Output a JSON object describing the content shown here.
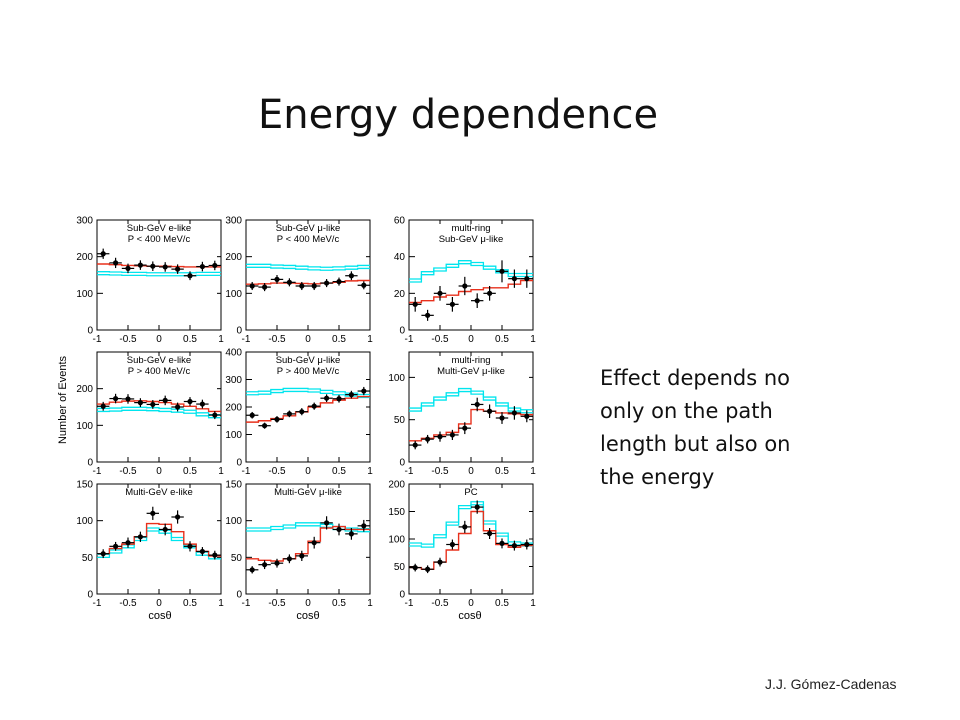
{
  "slide": {
    "title": "Energy dependence",
    "note_lines": [
      "Effect depends no",
      "only on the path",
      "length but also on",
      "the energy"
    ],
    "credit": "J.J. Gómez-Cadenas"
  },
  "figure": {
    "ylabel": "Number of Events",
    "xlabel": "cosθ",
    "colors": {
      "data": "#000000",
      "nonosc": "#00e5ee",
      "osc": "#e8301c"
    }
  },
  "chart_data": [
    {
      "type": "line",
      "panel": "Sub-GeV e-like P<400",
      "label": [
        "Sub-GeV e-like",
        "P < 400 MeV/c"
      ],
      "ylim": [
        0,
        300
      ],
      "yticks": [
        0,
        100,
        200,
        300
      ],
      "xticks": [
        "-1",
        "-0.5",
        "0",
        "0.5",
        "1"
      ],
      "x": [
        -0.9,
        -0.7,
        -0.5,
        -0.3,
        -0.1,
        0.1,
        0.3,
        0.5,
        0.7,
        0.9
      ],
      "series": [
        {
          "role": "data",
          "values": [
            208,
            183,
            168,
            177,
            174,
            172,
            166,
            148,
            173,
            176
          ],
          "errors": [
            14,
            14,
            13,
            13,
            13,
            13,
            13,
            12,
            13,
            13
          ]
        },
        {
          "role": "nonosc",
          "values": [
            155,
            154,
            153,
            153,
            152,
            152,
            152,
            152,
            153,
            153
          ]
        },
        {
          "role": "osc",
          "values": [
            180,
            178,
            176,
            175,
            174,
            174,
            173,
            172,
            172,
            172
          ]
        }
      ]
    },
    {
      "type": "line",
      "panel": "Sub-GeV mu-like P<400",
      "label": [
        "Sub-GeV μ-like",
        "P < 400 MeV/c"
      ],
      "ylim": [
        0,
        300
      ],
      "yticks": [
        0,
        100,
        200,
        300
      ],
      "xticks": [
        "-1",
        "-0.5",
        "0",
        "0.5",
        "1"
      ],
      "x": [
        -0.9,
        -0.7,
        -0.5,
        -0.3,
        -0.1,
        0.1,
        0.3,
        0.5,
        0.7,
        0.9
      ],
      "series": [
        {
          "role": "data",
          "values": [
            120,
            117,
            138,
            130,
            120,
            120,
            128,
            132,
            148,
            122
          ],
          "errors": [
            11,
            11,
            12,
            11,
            11,
            11,
            11,
            11,
            12,
            11
          ]
        },
        {
          "role": "nonosc",
          "values": [
            175,
            175,
            173,
            172,
            170,
            168,
            167,
            168,
            170,
            172
          ]
        },
        {
          "role": "osc",
          "values": [
            125,
            126,
            128,
            128,
            127,
            126,
            128,
            130,
            134,
            135
          ]
        }
      ]
    },
    {
      "type": "line",
      "panel": "multi-ring Sub-GeV mu-like",
      "label": [
        "multi-ring",
        "Sub-GeV μ-like"
      ],
      "ylim": [
        0,
        60
      ],
      "yticks": [
        0,
        20,
        40,
        60
      ],
      "xticks": [
        "-1",
        "-0.5",
        "0",
        "0.5",
        "1"
      ],
      "x": [
        -0.9,
        -0.7,
        -0.5,
        -0.3,
        -0.1,
        0.1,
        0.3,
        0.5,
        0.7,
        0.9
      ],
      "series": [
        {
          "role": "data",
          "values": [
            14,
            8,
            20,
            14,
            24,
            16,
            20,
            32,
            28,
            28
          ],
          "errors": [
            4,
            3,
            4,
            4,
            5,
            4,
            4,
            6,
            5,
            5
          ]
        },
        {
          "role": "nonosc",
          "values": [
            27,
            31,
            33,
            35,
            37,
            36,
            34,
            32,
            30,
            30
          ]
        },
        {
          "role": "osc",
          "values": [
            15,
            16,
            18,
            19,
            21,
            22,
            23,
            23,
            25,
            27
          ]
        }
      ]
    },
    {
      "type": "line",
      "panel": "Sub-GeV e-like P>400",
      "label": [
        "Sub-GeV e-like",
        "P > 400 MeV/c"
      ],
      "ylim": [
        0,
        300
      ],
      "yticks": [
        0,
        100,
        200
      ],
      "xticks": [
        "-1",
        "-0.5",
        "0",
        "0.5",
        "1"
      ],
      "x": [
        -0.9,
        -0.7,
        -0.5,
        -0.3,
        -0.1,
        0.1,
        0.3,
        0.5,
        0.7,
        0.9
      ],
      "series": [
        {
          "role": "data",
          "values": [
            152,
            173,
            172,
            162,
            157,
            168,
            150,
            165,
            158,
            128
          ],
          "errors": [
            12,
            13,
            13,
            12,
            12,
            13,
            12,
            12,
            12,
            11
          ]
        },
        {
          "role": "nonosc",
          "values": [
            142,
            143,
            145,
            145,
            144,
            142,
            140,
            137,
            130,
            125
          ]
        },
        {
          "role": "osc",
          "values": [
            158,
            163,
            166,
            167,
            165,
            162,
            158,
            152,
            145,
            138
          ]
        }
      ]
    },
    {
      "type": "line",
      "panel": "Sub-GeV mu-like P>400",
      "label": [
        "Sub-GeV μ-like",
        "P > 400 MeV/c"
      ],
      "ylim": [
        0,
        400
      ],
      "yticks": [
        0,
        100,
        200,
        300,
        400
      ],
      "xticks": [
        "-1",
        "-0.5",
        "0",
        "0.5",
        "1"
      ],
      "x": [
        -0.9,
        -0.7,
        -0.5,
        -0.3,
        -0.1,
        0.1,
        0.3,
        0.5,
        0.7,
        0.9
      ],
      "series": [
        {
          "role": "data",
          "values": [
            170,
            132,
            155,
            175,
            183,
            203,
            232,
            230,
            245,
            258
          ],
          "errors": [
            12,
            11,
            12,
            12,
            13,
            13,
            14,
            14,
            14,
            15
          ]
        },
        {
          "role": "nonosc",
          "values": [
            250,
            252,
            258,
            262,
            262,
            260,
            255,
            250,
            245,
            240
          ]
        },
        {
          "role": "osc",
          "values": [
            145,
            150,
            158,
            168,
            182,
            200,
            215,
            225,
            232,
            238
          ]
        }
      ]
    },
    {
      "type": "line",
      "panel": "multi-ring Multi-GeV mu-like",
      "label": [
        "multi-ring",
        "Multi-GeV μ-like"
      ],
      "ylim": [
        0,
        130
      ],
      "yticks": [
        0,
        50,
        100
      ],
      "xticks": [
        "-1",
        "-0.5",
        "0",
        "0.5",
        "1"
      ],
      "x": [
        -0.9,
        -0.7,
        -0.5,
        -0.3,
        -0.1,
        0.1,
        0.3,
        0.5,
        0.7,
        0.9
      ],
      "series": [
        {
          "role": "data",
          "values": [
            20,
            27,
            30,
            32,
            40,
            68,
            60,
            52,
            58,
            54
          ],
          "errors": [
            5,
            5,
            6,
            6,
            7,
            8,
            8,
            7,
            8,
            7
          ]
        },
        {
          "role": "nonosc",
          "values": [
            62,
            68,
            75,
            80,
            85,
            82,
            75,
            68,
            62,
            60
          ]
        },
        {
          "role": "osc",
          "values": [
            25,
            28,
            32,
            35,
            45,
            62,
            60,
            58,
            57,
            56
          ]
        }
      ]
    },
    {
      "type": "line",
      "panel": "Multi-GeV e-like",
      "label": [
        "Multi-GeV e-like"
      ],
      "ylim": [
        0,
        150
      ],
      "yticks": [
        0,
        50,
        100,
        150
      ],
      "xticks": [
        "-1",
        "-0.5",
        "0",
        "0.5",
        "1"
      ],
      "x": [
        -0.9,
        -0.7,
        -0.5,
        -0.3,
        -0.1,
        0.1,
        0.3,
        0.5,
        0.7,
        0.9
      ],
      "series": [
        {
          "role": "data",
          "values": [
            55,
            65,
            70,
            78,
            110,
            88,
            105,
            65,
            58,
            53
          ],
          "errors": [
            6,
            6,
            7,
            7,
            9,
            8,
            9,
            7,
            6,
            6
          ]
        },
        {
          "role": "nonosc",
          "values": [
            52,
            58,
            65,
            75,
            88,
            85,
            75,
            65,
            55,
            50
          ]
        },
        {
          "role": "osc",
          "values": [
            55,
            62,
            68,
            78,
            96,
            95,
            85,
            68,
            58,
            52
          ]
        }
      ]
    },
    {
      "type": "line",
      "panel": "Multi-GeV mu-like",
      "label": [
        "Multi-GeV μ-like"
      ],
      "ylim": [
        0,
        150
      ],
      "yticks": [
        0,
        50,
        100,
        150
      ],
      "xticks": [
        "-1",
        "-0.5",
        "0",
        "0.5",
        "1"
      ],
      "x": [
        -0.9,
        -0.7,
        -0.5,
        -0.3,
        -0.1,
        0.1,
        0.3,
        0.5,
        0.7,
        0.9
      ],
      "series": [
        {
          "role": "data",
          "values": [
            33,
            40,
            42,
            48,
            52,
            70,
            97,
            88,
            82,
            93
          ],
          "errors": [
            5,
            6,
            6,
            6,
            7,
            8,
            9,
            8,
            8,
            8
          ]
        },
        {
          "role": "nonosc",
          "values": [
            88,
            88,
            90,
            92,
            95,
            95,
            93,
            90,
            88,
            87
          ]
        },
        {
          "role": "osc",
          "values": [
            48,
            46,
            45,
            48,
            55,
            72,
            90,
            92,
            88,
            88
          ]
        }
      ]
    },
    {
      "type": "line",
      "panel": "PC",
      "label": [
        "PC"
      ],
      "ylim": [
        0,
        200
      ],
      "yticks": [
        0,
        50,
        100,
        150,
        200
      ],
      "xticks": [
        "-1",
        "-0.5",
        "0",
        "0.5",
        "1"
      ],
      "x": [
        -0.9,
        -0.7,
        -0.5,
        -0.3,
        -0.1,
        0.1,
        0.3,
        0.5,
        0.7,
        0.9
      ],
      "series": [
        {
          "role": "data",
          "values": [
            48,
            45,
            58,
            90,
            122,
            158,
            110,
            92,
            88,
            90
          ],
          "errors": [
            7,
            7,
            8,
            9,
            11,
            12,
            10,
            9,
            9,
            9
          ]
        },
        {
          "role": "nonosc",
          "values": [
            90,
            88,
            105,
            128,
            158,
            165,
            130,
            108,
            92,
            90
          ]
        },
        {
          "role": "osc",
          "values": [
            48,
            45,
            58,
            80,
            110,
            150,
            115,
            90,
            85,
            88
          ]
        }
      ]
    }
  ]
}
